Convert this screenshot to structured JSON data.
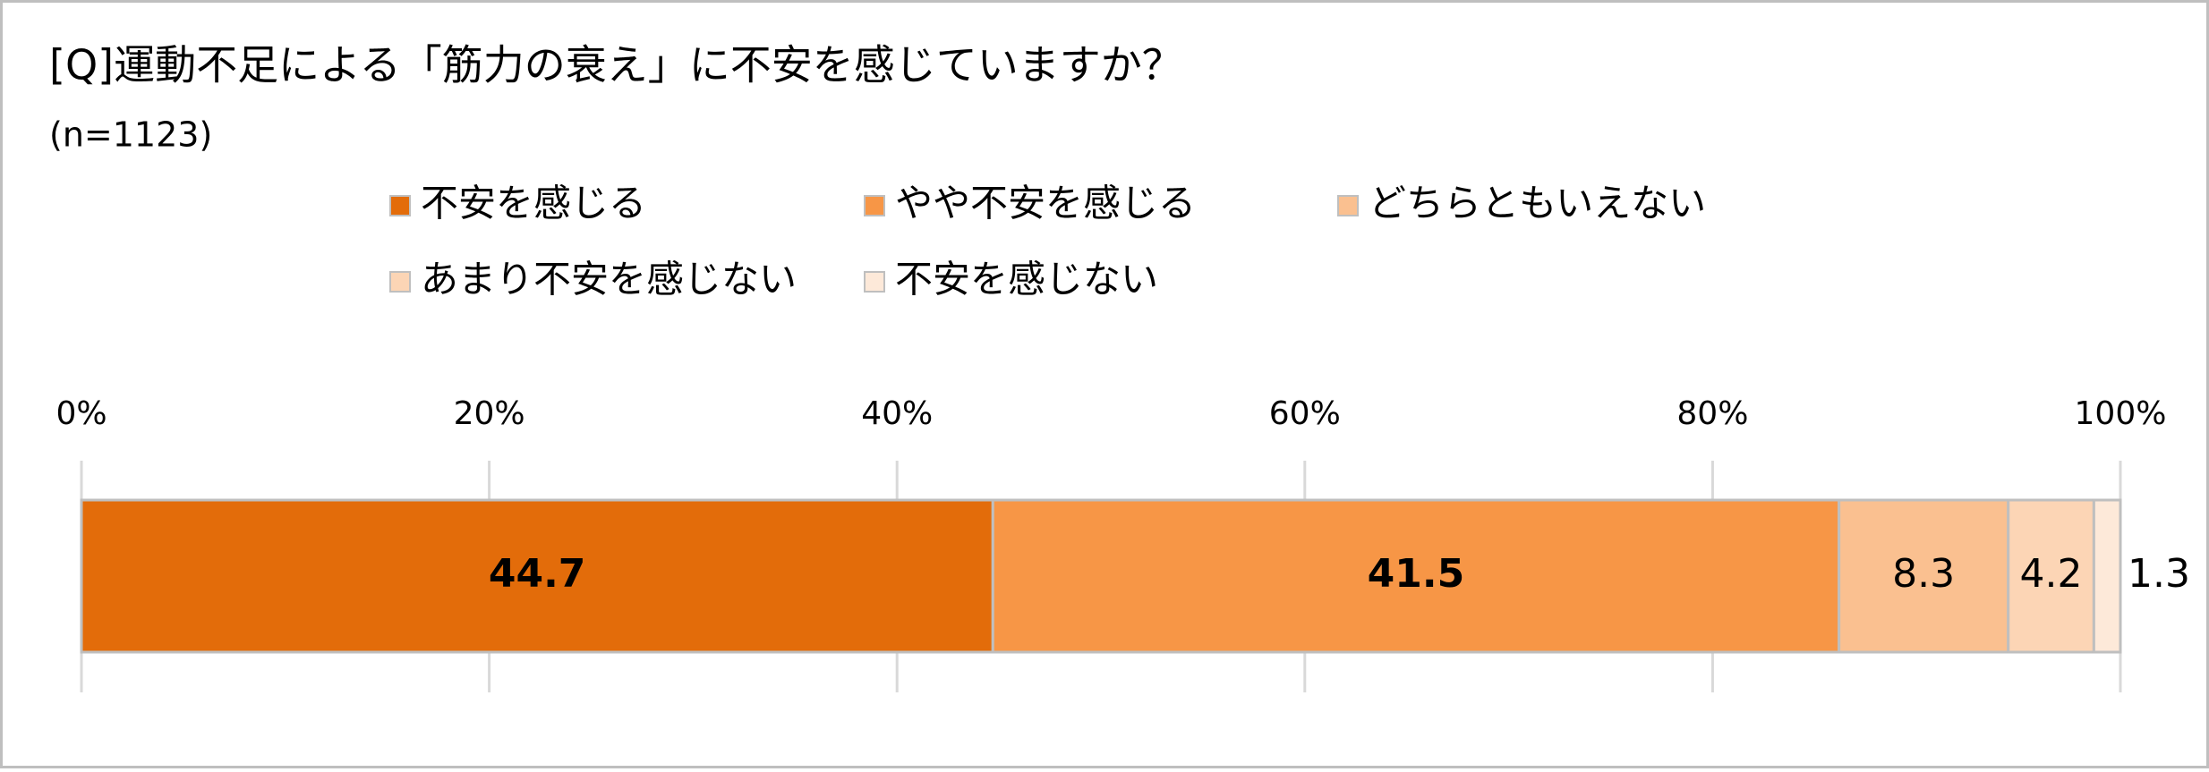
{
  "chart_data": {
    "type": "stacked-bar-horizontal",
    "title": "[Q]運動不足による「筋力の衰え」に不安を感じていますか？",
    "subtitle": "(n=1123)",
    "categories": [
      null
    ],
    "series": [
      {
        "name": "不安を感じる",
        "color": "#E36C0A",
        "values": [
          44.7
        ]
      },
      {
        "name": "やや不安を感じる",
        "color": "#F79646",
        "values": [
          41.5
        ]
      },
      {
        "name": "どちらともいえない",
        "color": "#FAC090",
        "values": [
          8.3
        ]
      },
      {
        "name": "あまり不安を感じない",
        "color": "#FCD5B5",
        "values": [
          4.2
        ]
      },
      {
        "name": "不安を感じない",
        "color": "#FDE9D9",
        "values": [
          1.3
        ]
      }
    ],
    "xlim": [
      0,
      100
    ],
    "xticks": [
      {
        "value": 0,
        "label": "0%"
      },
      {
        "value": 20,
        "label": "20%"
      },
      {
        "value": 40,
        "label": "40%"
      },
      {
        "value": 60,
        "label": "60%"
      },
      {
        "value": 80,
        "label": "80%"
      },
      {
        "value": 100,
        "label": "100%"
      }
    ],
    "grid": true,
    "legend": "top"
  }
}
